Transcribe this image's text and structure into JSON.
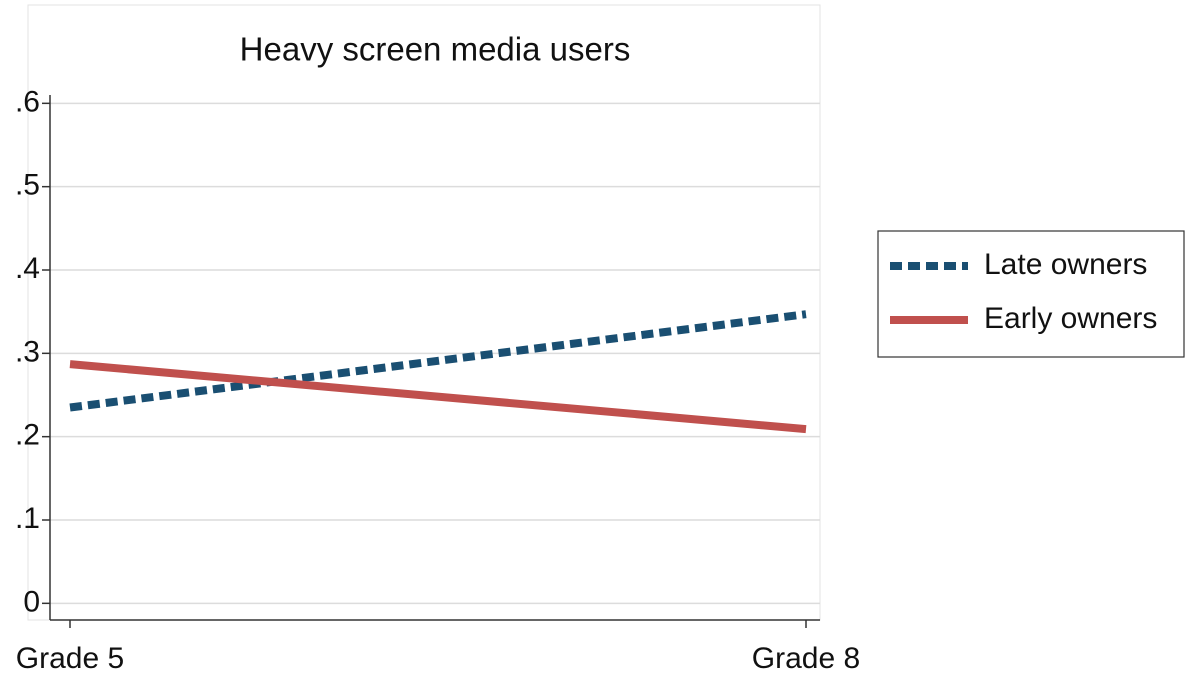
{
  "chart_data": {
    "type": "line",
    "title": "Heavy screen media users",
    "categories": [
      "Grade 5",
      "Grade 8"
    ],
    "series": [
      {
        "name": "Late owners",
        "color": "#1a4f72",
        "dash": true,
        "values": [
          0.235,
          0.347
        ]
      },
      {
        "name": "Early owners",
        "color": "#c0504d",
        "dash": false,
        "values": [
          0.287,
          0.209
        ]
      }
    ],
    "ylim": [
      -0.02,
      0.61
    ],
    "yticks": [
      0,
      {
        "value": 0.1,
        "label": ".1"
      },
      {
        "value": 0.2,
        "label": ".2"
      },
      {
        "value": 0.3,
        "label": ".3"
      },
      {
        "value": 0.4,
        "label": ".4"
      },
      {
        "value": 0.5,
        "label": ".5"
      },
      {
        "value": 0.6,
        "label": ".6"
      }
    ],
    "grid": true,
    "legend": "right"
  }
}
